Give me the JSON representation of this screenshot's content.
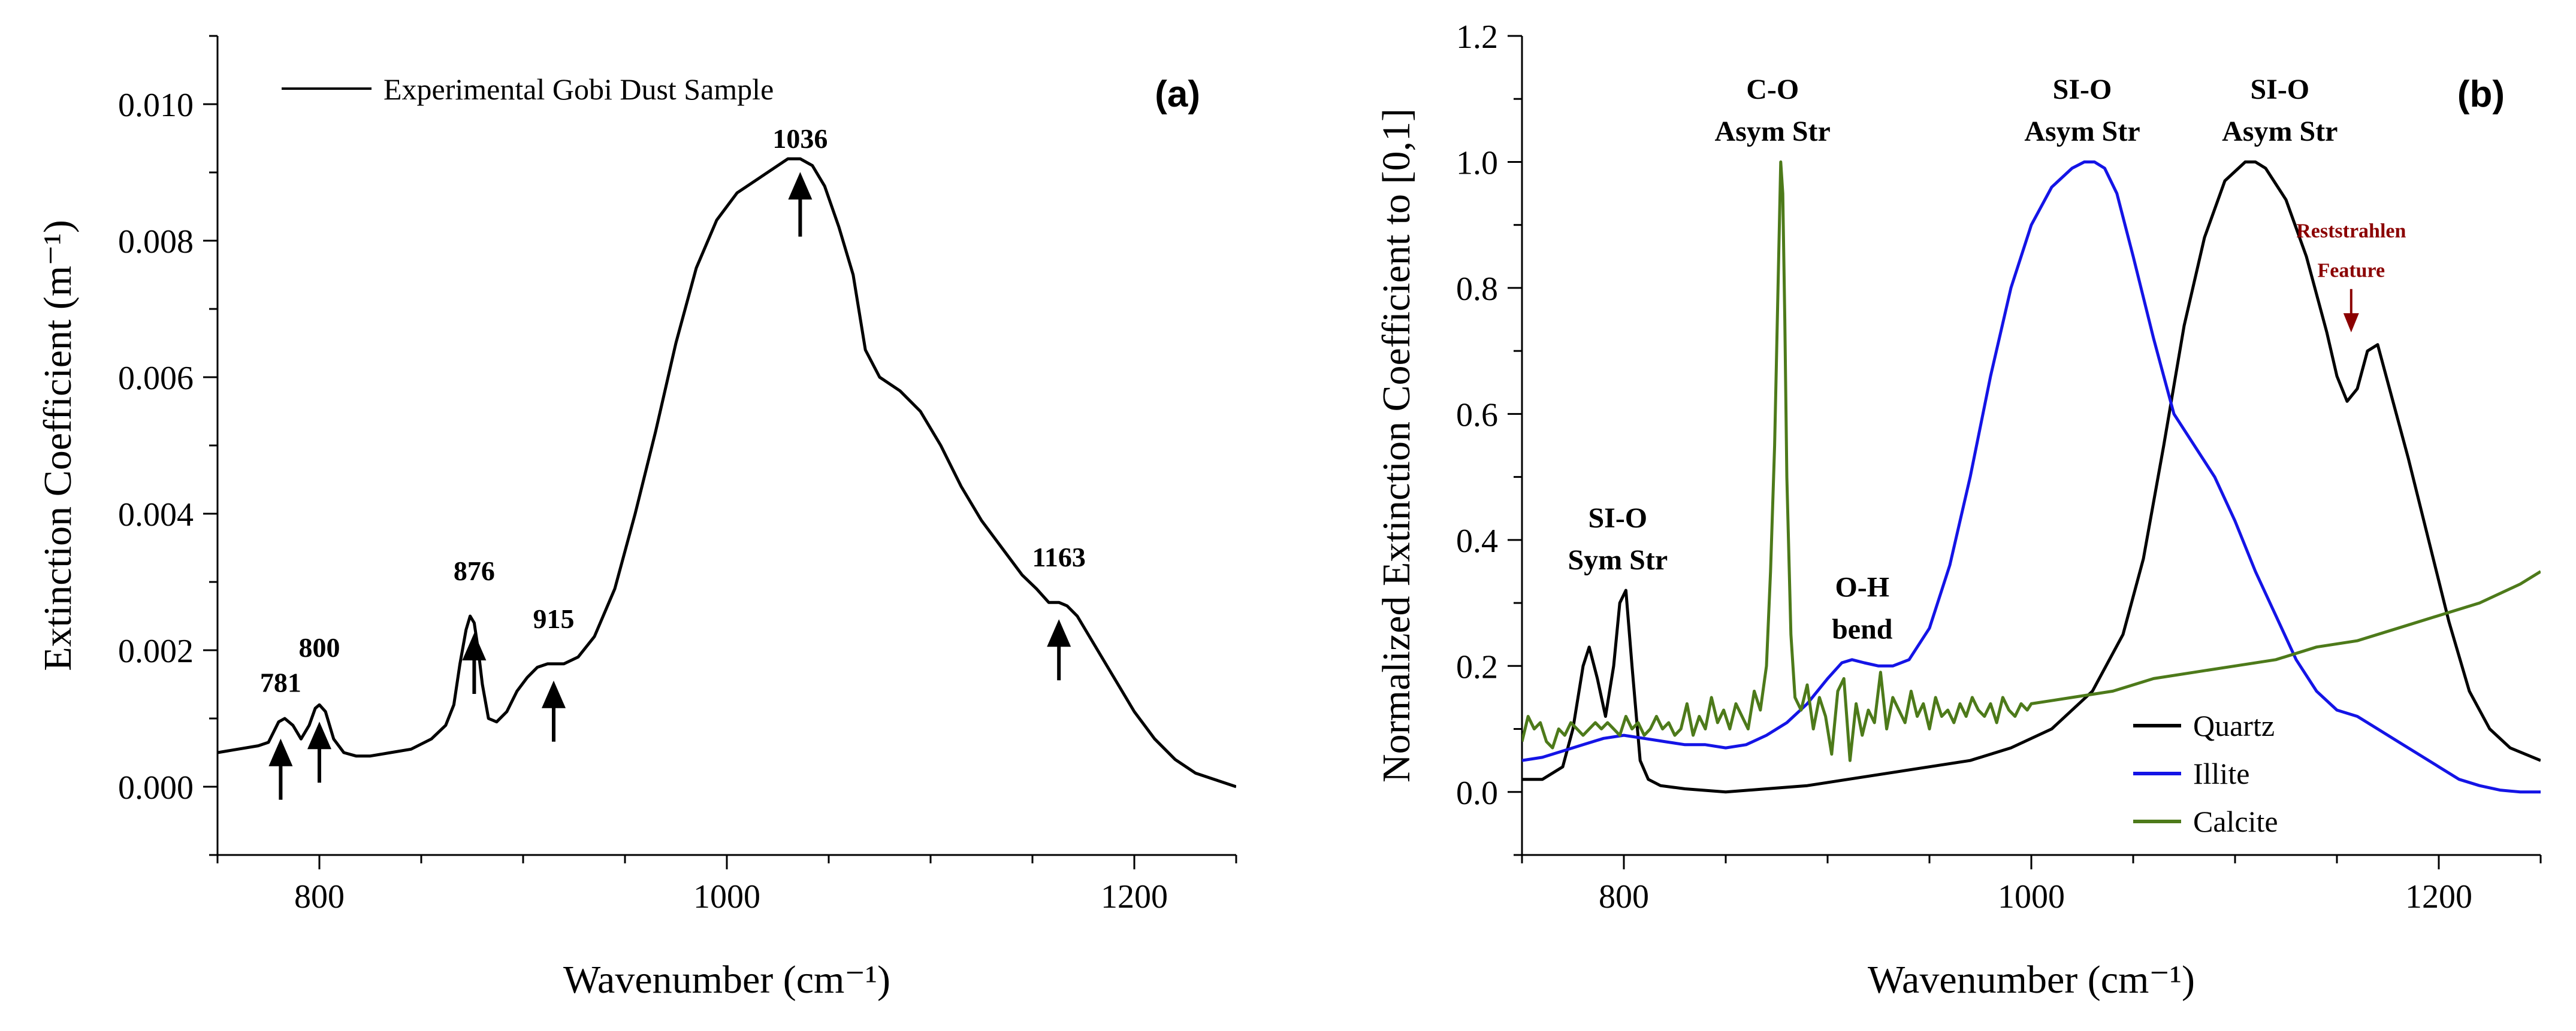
{
  "chart_data": [
    {
      "id": "a",
      "type": "line",
      "panel_label": "(a)",
      "xlabel": "Wavenumber (cm⁻¹)",
      "ylabel": "Extinction Coefficient (m⁻¹)",
      "xlim": [
        750,
        1250
      ],
      "ylim": [
        -0.001,
        0.011
      ],
      "xticks": [
        800,
        1000,
        1200
      ],
      "xtick_labels": [
        "800",
        "1000",
        "1200"
      ],
      "yticks": [
        0.0,
        0.002,
        0.004,
        0.006,
        0.008,
        0.01
      ],
      "ytick_labels": [
        "0.000",
        "0.002",
        "0.004",
        "0.006",
        "0.008",
        "0.010"
      ],
      "legend_position": "top-left",
      "series": [
        {
          "name": "Experimental Gobi Dust Sample",
          "color": "#000000",
          "x": [
            750,
            760,
            770,
            775,
            780,
            783,
            787,
            791,
            795,
            798,
            800,
            803,
            807,
            812,
            818,
            825,
            835,
            845,
            855,
            862,
            866,
            869,
            872,
            874,
            876,
            878,
            880,
            883,
            887,
            892,
            897,
            902,
            907,
            912,
            915,
            920,
            927,
            935,
            945,
            955,
            965,
            975,
            985,
            995,
            1005,
            1015,
            1025,
            1030,
            1036,
            1042,
            1048,
            1055,
            1062,
            1068,
            1075,
            1085,
            1095,
            1105,
            1115,
            1125,
            1135,
            1145,
            1152,
            1158,
            1163,
            1167,
            1172,
            1180,
            1190,
            1200,
            1210,
            1220,
            1230,
            1240,
            1250
          ],
          "y": [
            0.0005,
            0.00055,
            0.0006,
            0.00065,
            0.00095,
            0.001,
            0.0009,
            0.0007,
            0.0009,
            0.00115,
            0.0012,
            0.0011,
            0.0007,
            0.0005,
            0.00045,
            0.00045,
            0.0005,
            0.00055,
            0.0007,
            0.0009,
            0.0012,
            0.0018,
            0.0023,
            0.0025,
            0.0024,
            0.002,
            0.0015,
            0.001,
            0.00095,
            0.0011,
            0.0014,
            0.0016,
            0.00175,
            0.0018,
            0.0018,
            0.0018,
            0.0019,
            0.0022,
            0.0029,
            0.004,
            0.0052,
            0.0065,
            0.0076,
            0.0083,
            0.0087,
            0.0089,
            0.0091,
            0.0092,
            0.0092,
            0.0091,
            0.0088,
            0.0082,
            0.0075,
            0.0064,
            0.006,
            0.0058,
            0.0055,
            0.005,
            0.0044,
            0.0039,
            0.0035,
            0.0031,
            0.0029,
            0.0027,
            0.0027,
            0.00265,
            0.0025,
            0.0021,
            0.0016,
            0.0011,
            0.0007,
            0.0004,
            0.0002,
            0.0001,
            0.0
          ]
        }
      ],
      "annotations": [
        {
          "text": "781",
          "x": 781,
          "y": 0.00095
        },
        {
          "text": "800",
          "x": 800,
          "y": 0.0012
        },
        {
          "text": "876",
          "x": 876,
          "y": 0.0025
        },
        {
          "text": "915",
          "x": 915,
          "y": 0.0018
        },
        {
          "text": "1036",
          "x": 1036,
          "y": 0.0092
        },
        {
          "text": "1163",
          "x": 1163,
          "y": 0.0027
        }
      ]
    },
    {
      "id": "b",
      "type": "line",
      "panel_label": "(b)",
      "xlabel": "Wavenumber (cm⁻¹)",
      "ylabel": "Normalized Extinction Coefficient to [0,1]",
      "xlim": [
        750,
        1250
      ],
      "ylim": [
        -0.1,
        1.2
      ],
      "xticks": [
        800,
        1000,
        1200
      ],
      "xtick_labels": [
        "800",
        "1000",
        "1200"
      ],
      "yticks": [
        0.0,
        0.2,
        0.4,
        0.6,
        0.8,
        1.0,
        1.2
      ],
      "ytick_labels": [
        "0.0",
        "0.2",
        "0.4",
        "0.6",
        "0.8",
        "1.0",
        "1.2"
      ],
      "legend_position": "bottom-right",
      "series": [
        {
          "name": "Quartz",
          "color": "#000000",
          "x": [
            750,
            760,
            770,
            775,
            780,
            783,
            787,
            791,
            795,
            798,
            801,
            804,
            808,
            812,
            818,
            830,
            850,
            870,
            890,
            910,
            930,
            950,
            970,
            990,
            1010,
            1030,
            1045,
            1055,
            1065,
            1075,
            1085,
            1095,
            1105,
            1110,
            1115,
            1125,
            1135,
            1145,
            1150,
            1155,
            1160,
            1165,
            1170,
            1175,
            1185,
            1195,
            1205,
            1215,
            1225,
            1235,
            1250
          ],
          "y": [
            0.02,
            0.02,
            0.04,
            0.1,
            0.2,
            0.23,
            0.18,
            0.12,
            0.2,
            0.3,
            0.32,
            0.2,
            0.05,
            0.02,
            0.01,
            0.005,
            0.0,
            0.005,
            0.01,
            0.02,
            0.03,
            0.04,
            0.05,
            0.07,
            0.1,
            0.16,
            0.25,
            0.37,
            0.55,
            0.74,
            0.88,
            0.97,
            1.0,
            1.0,
            0.99,
            0.94,
            0.85,
            0.73,
            0.66,
            0.62,
            0.64,
            0.7,
            0.71,
            0.65,
            0.53,
            0.4,
            0.27,
            0.16,
            0.1,
            0.07,
            0.05
          ]
        },
        {
          "name": "Illite",
          "color": "#1414e6",
          "x": [
            750,
            760,
            770,
            780,
            790,
            800,
            810,
            820,
            830,
            840,
            850,
            860,
            870,
            880,
            890,
            900,
            907,
            912,
            918,
            925,
            932,
            940,
            950,
            960,
            970,
            980,
            990,
            1000,
            1010,
            1020,
            1026,
            1031,
            1036,
            1042,
            1050,
            1060,
            1070,
            1080,
            1090,
            1100,
            1110,
            1120,
            1130,
            1140,
            1150,
            1160,
            1170,
            1180,
            1190,
            1200,
            1210,
            1220,
            1230,
            1240,
            1250
          ],
          "y": [
            0.05,
            0.055,
            0.065,
            0.075,
            0.085,
            0.09,
            0.085,
            0.08,
            0.075,
            0.075,
            0.07,
            0.075,
            0.09,
            0.11,
            0.14,
            0.18,
            0.205,
            0.21,
            0.205,
            0.2,
            0.2,
            0.21,
            0.26,
            0.36,
            0.5,
            0.66,
            0.8,
            0.9,
            0.96,
            0.99,
            1.0,
            1.0,
            0.99,
            0.95,
            0.85,
            0.72,
            0.6,
            0.55,
            0.5,
            0.43,
            0.35,
            0.28,
            0.21,
            0.16,
            0.13,
            0.12,
            0.1,
            0.08,
            0.06,
            0.04,
            0.02,
            0.01,
            0.003,
            0.0,
            0.0
          ]
        },
        {
          "name": "Calcite",
          "color": "#4d7a1a",
          "x": [
            750,
            753,
            756,
            759,
            762,
            765,
            768,
            771,
            774,
            777,
            780,
            783,
            786,
            789,
            792,
            795,
            798,
            801,
            804,
            807,
            810,
            813,
            816,
            819,
            822,
            825,
            828,
            831,
            834,
            837,
            840,
            843,
            846,
            849,
            852,
            855,
            858,
            861,
            864,
            867,
            870,
            872,
            874,
            876,
            877,
            878,
            879,
            880,
            882,
            884,
            887,
            890,
            893,
            896,
            899,
            902,
            905,
            908,
            911,
            914,
            917,
            920,
            923,
            926,
            929,
            932,
            935,
            938,
            941,
            944,
            947,
            950,
            953,
            956,
            959,
            962,
            965,
            968,
            971,
            974,
            977,
            980,
            983,
            986,
            989,
            992,
            995,
            998,
            1000,
            1020,
            1040,
            1060,
            1080,
            1100,
            1120,
            1140,
            1160,
            1180,
            1200,
            1220,
            1240,
            1250
          ],
          "y": [
            0.08,
            0.12,
            0.1,
            0.11,
            0.08,
            0.07,
            0.1,
            0.09,
            0.11,
            0.1,
            0.09,
            0.1,
            0.11,
            0.1,
            0.11,
            0.1,
            0.09,
            0.12,
            0.1,
            0.11,
            0.09,
            0.1,
            0.12,
            0.1,
            0.11,
            0.09,
            0.1,
            0.14,
            0.09,
            0.12,
            0.1,
            0.15,
            0.11,
            0.13,
            0.1,
            0.14,
            0.12,
            0.1,
            0.16,
            0.13,
            0.2,
            0.35,
            0.55,
            0.85,
            1.0,
            0.95,
            0.75,
            0.5,
            0.25,
            0.15,
            0.13,
            0.17,
            0.1,
            0.15,
            0.12,
            0.06,
            0.16,
            0.18,
            0.05,
            0.14,
            0.09,
            0.13,
            0.11,
            0.19,
            0.1,
            0.15,
            0.13,
            0.11,
            0.16,
            0.12,
            0.14,
            0.1,
            0.15,
            0.12,
            0.13,
            0.11,
            0.14,
            0.12,
            0.15,
            0.13,
            0.12,
            0.14,
            0.11,
            0.15,
            0.13,
            0.12,
            0.14,
            0.13,
            0.14,
            0.15,
            0.16,
            0.18,
            0.19,
            0.2,
            0.21,
            0.23,
            0.24,
            0.26,
            0.28,
            0.3,
            0.33,
            0.35
          ]
        }
      ],
      "annotations": [
        {
          "lines": [
            "SI-O",
            "Sym Str"
          ],
          "x": 797,
          "y": 0.42
        },
        {
          "lines": [
            "C-O",
            "Asym Str"
          ],
          "x": 873,
          "y": 1.1
        },
        {
          "lines": [
            "O-H",
            "bend"
          ],
          "x": 917,
          "y": 0.31
        },
        {
          "lines": [
            "SI-O",
            "Asym Str"
          ],
          "x": 1025,
          "y": 1.1
        },
        {
          "lines": [
            "SI-O",
            "Asym Str"
          ],
          "x": 1122,
          "y": 1.1
        },
        {
          "lines": [
            "Reststrahlen",
            "Feature"
          ],
          "x": 1157,
          "y": 0.88,
          "color": "#8b0000",
          "arrow_to": {
            "x": 1157,
            "y": 0.72
          }
        }
      ]
    }
  ]
}
